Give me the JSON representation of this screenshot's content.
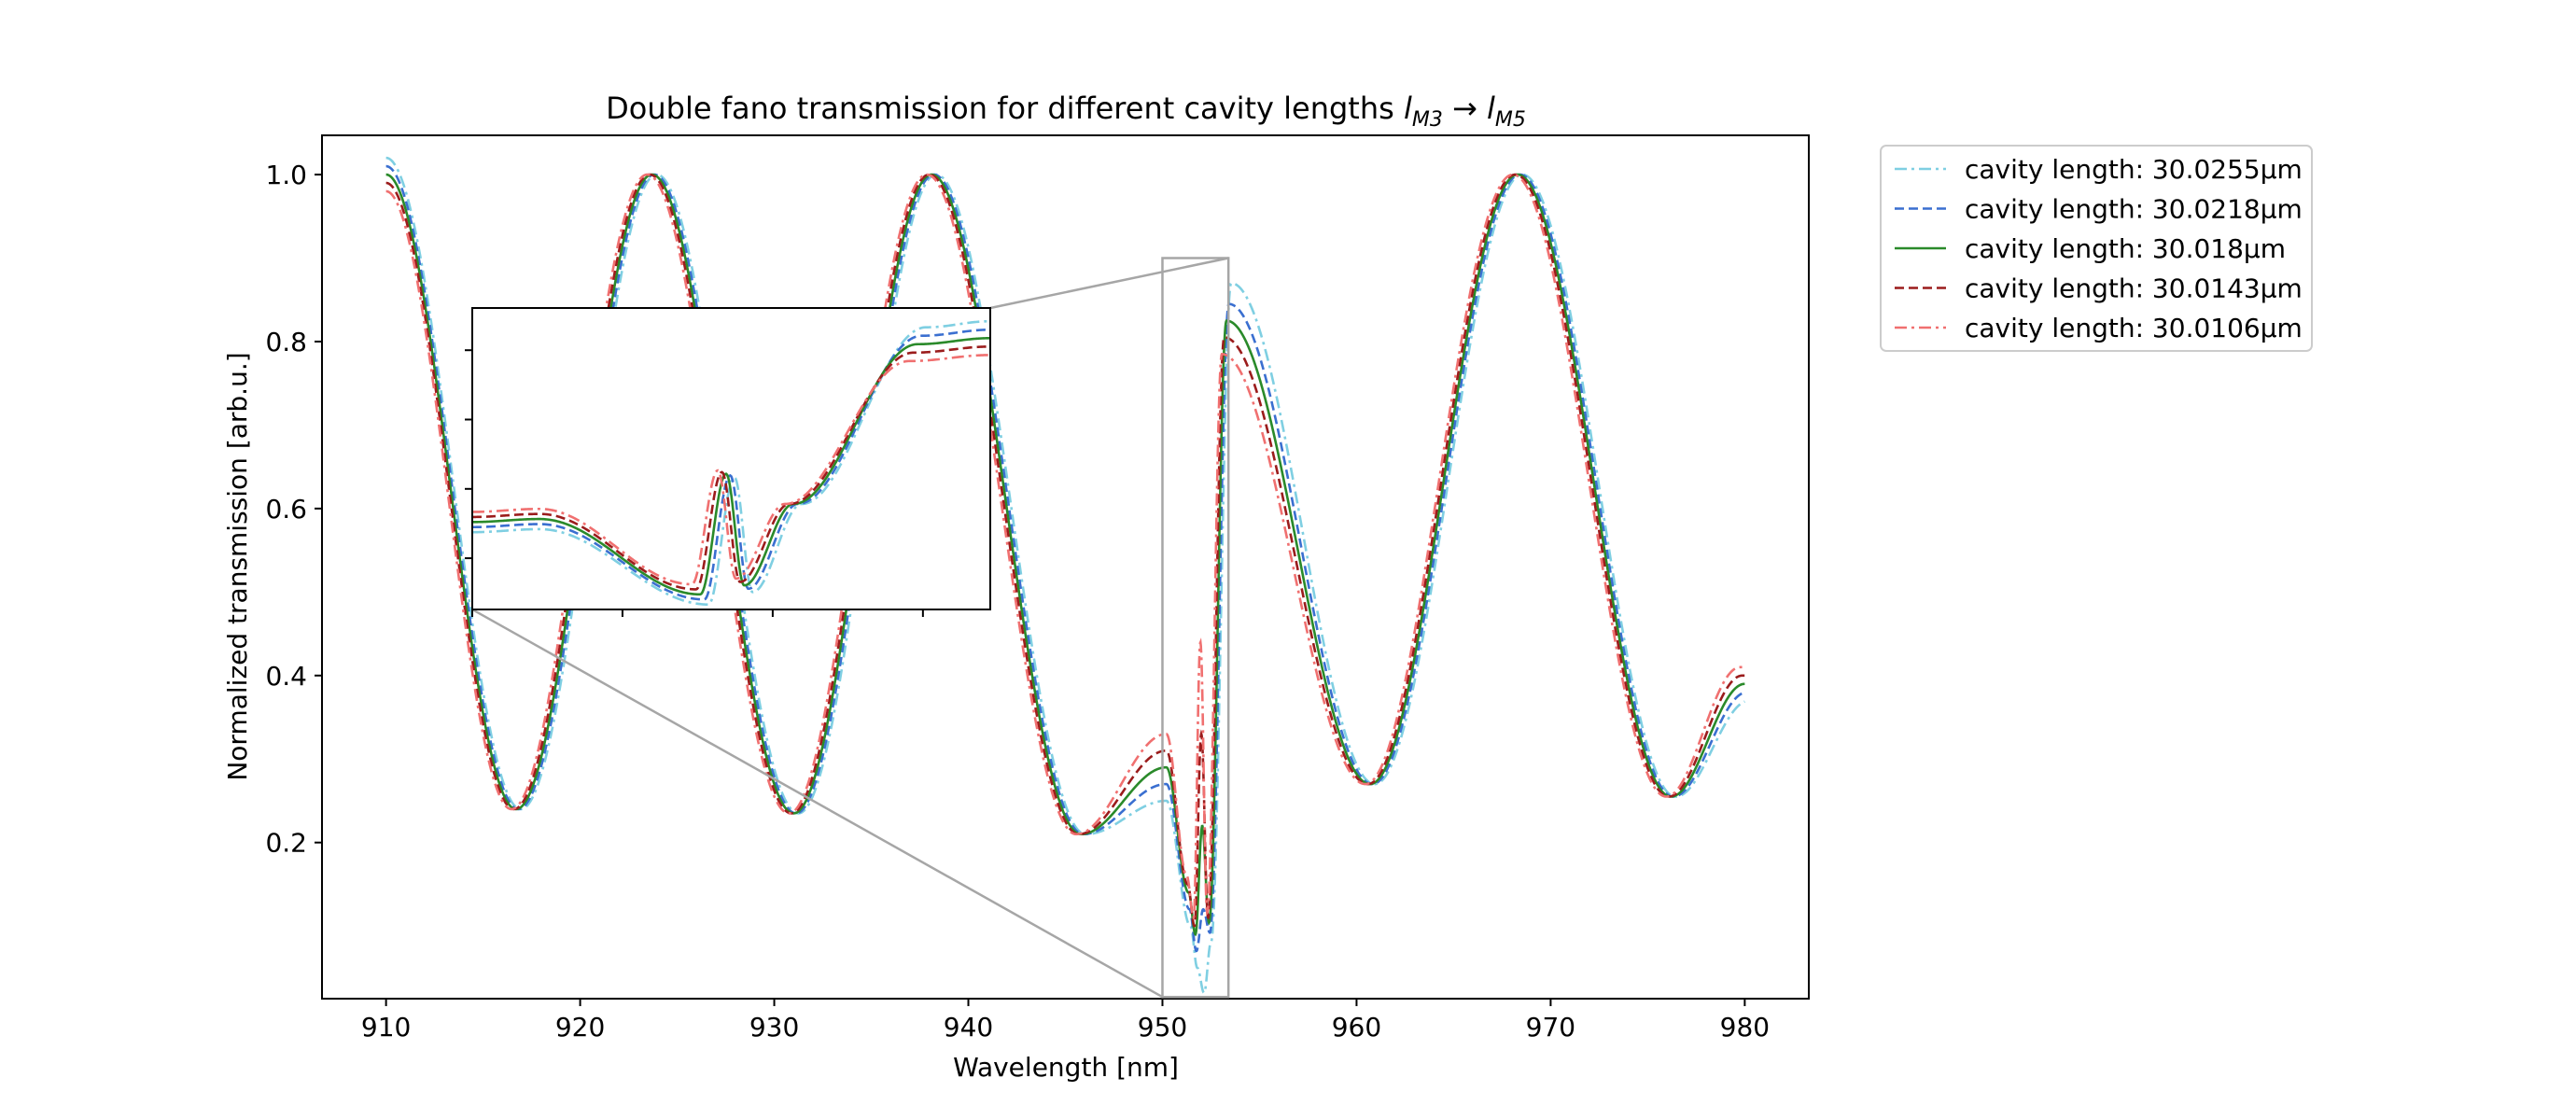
{
  "chart_data": {
    "type": "line",
    "title_main": "Double fano transmission for different cavity lengths ",
    "title_var1": "l",
    "title_sub1": "M3",
    "title_arrow": " → ",
    "title_var2": "l",
    "title_sub2": "M5",
    "xlabel": "Wavelength [nm]",
    "ylabel": "Normalized transmission [arb.u.]",
    "xlim": [
      906.7,
      983.3
    ],
    "ylim": [
      0.013,
      1.047
    ],
    "x_ticks": [
      910,
      920,
      930,
      940,
      950,
      960,
      970,
      980
    ],
    "x_tick_labels": [
      "910",
      "920",
      "930",
      "940",
      "950",
      "960",
      "970",
      "980"
    ],
    "y_ticks": [
      0.2,
      0.4,
      0.6,
      0.8,
      1.0
    ],
    "y_tick_labels": [
      "0.2",
      "0.4",
      "0.6",
      "0.8",
      "1.0"
    ],
    "grid": false,
    "legend_position": "outside-upper-right",
    "series": [
      {
        "name": "cavity length: 30.0255µm",
        "color": "#7fcfe2",
        "dash": "dashdot",
        "shift": 0.24,
        "bump": -0.04,
        "dip": 0.05,
        "spike": 0.02,
        "post": 0.87
      },
      {
        "name": "cavity length: 30.0218µm",
        "color": "#3a6fd0",
        "dash": "dashed",
        "shift": 0.12,
        "bump": -0.02,
        "dip": 0.07,
        "spike": 0.12,
        "post": 0.845
      },
      {
        "name": "cavity length: 30.018µm",
        "color": "#2a8a2a",
        "dash": "solid",
        "shift": 0.0,
        "bump": 0.0,
        "dip": 0.09,
        "spike": 0.22,
        "post": 0.825
      },
      {
        "name": "cavity length: 30.0143µm",
        "color": "#9b1c1c",
        "dash": "dashed",
        "shift": -0.12,
        "bump": 0.02,
        "dip": 0.1,
        "spike": 0.33,
        "post": 0.805
      },
      {
        "name": "cavity length: 30.0106µm",
        "color": "#f07070",
        "dash": "dashdot",
        "shift": -0.24,
        "bump": 0.04,
        "dip": 0.11,
        "spike": 0.44,
        "post": 0.785
      }
    ],
    "minima": [
      {
        "x": 916.7,
        "y": 0.24
      },
      {
        "x": 931.0,
        "y": 0.235
      },
      {
        "x": 945.8,
        "y": 0.21
      },
      {
        "x": 960.7,
        "y": 0.27
      },
      {
        "x": 976.2,
        "y": 0.255
      }
    ],
    "peaks": [
      {
        "x": 923.7,
        "y": 1.0
      },
      {
        "x": 938.1,
        "y": 1.0
      },
      {
        "x": 968.3,
        "y": 1.0
      }
    ],
    "fano_bump": {
      "x": 950.2,
      "y": 0.29
    },
    "zoom_region": {
      "x0": 950.0,
      "x1": 953.4,
      "y0": 0.015,
      "y1": 0.9
    }
  },
  "legend": {
    "items": [
      "cavity length: 30.0255µm",
      "cavity length: 30.0218µm",
      "cavity length: 30.018µm",
      "cavity length: 30.0143µm",
      "cavity length: 30.0106µm"
    ]
  }
}
